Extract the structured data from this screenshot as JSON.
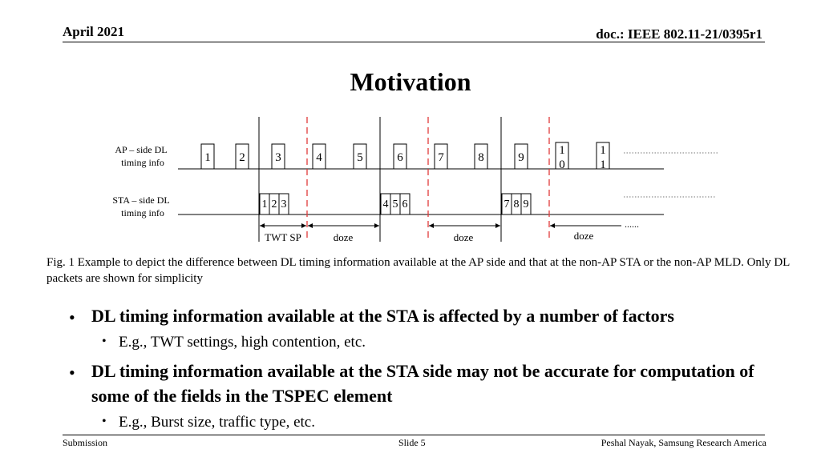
{
  "header": {
    "date": "April 2021",
    "doc_id": "doc.: IEEE 802.11-21/0395r1"
  },
  "title": "Motivation",
  "diagram": {
    "ap_label": [
      "AP – side DL",
      "timing info"
    ],
    "sta_label": [
      "STA – side DL",
      "timing info"
    ],
    "ap_packets": [
      "1",
      "2",
      "3",
      "4",
      "5",
      "6",
      "7",
      "8",
      "9"
    ],
    "ap_packet_10": [
      "1",
      "0"
    ],
    "ap_packet_11": [
      "1",
      "1"
    ],
    "sta_packets": [
      "1",
      "2",
      "3",
      "4",
      "5",
      "6",
      "7",
      "8",
      "9"
    ],
    "interval_labels": [
      "TWT SP",
      "doze",
      "doze",
      "doze"
    ],
    "ellipsis": "......"
  },
  "caption": "Fig. 1 Example to depict the difference between DL timing information available at the AP side and that at the non-AP STA or the non-AP MLD. Only DL packets are shown for simplicity",
  "bullets": [
    {
      "text": "DL timing information available at the STA is affected by a number of factors",
      "sub": "E.g., TWT settings, high contention, etc."
    },
    {
      "text": "DL timing information available at the STA side may not be accurate for computation of some of the fields in the TSPEC element",
      "sub": "E.g., Burst size, traffic type, etc."
    }
  ],
  "bullet_glyph": "•",
  "footer": {
    "left": "Submission",
    "center": "Slide 5",
    "right": "Peshal Nayak, Samsung Research America"
  }
}
